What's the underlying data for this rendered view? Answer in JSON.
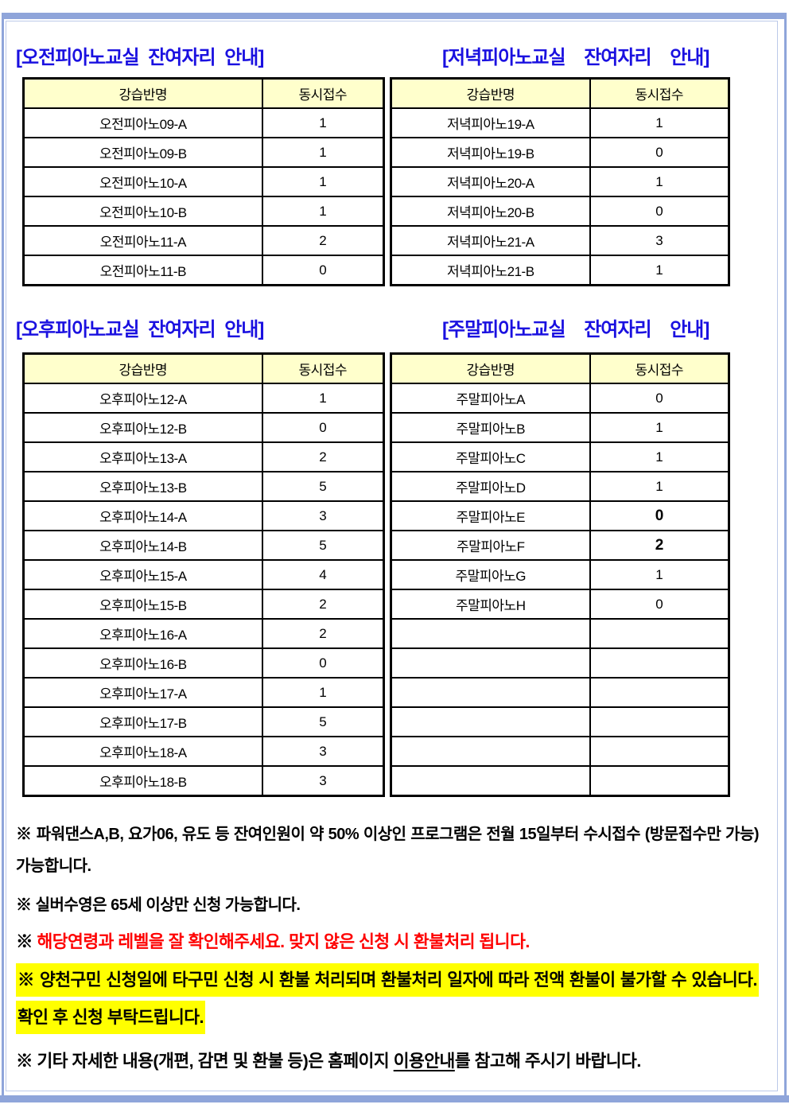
{
  "sections": [
    {
      "left_title": "[오전피아노교실 잔여자리 안내]",
      "right_title": "[저녁피아노교실 잔여자리 안내]",
      "left_table": {
        "headers": [
          "강습반명",
          "동시접수"
        ],
        "rows": [
          {
            "name": "오전피아노09-A",
            "value": "1"
          },
          {
            "name": "오전피아노09-B",
            "value": "1"
          },
          {
            "name": "오전피아노10-A",
            "value": "1"
          },
          {
            "name": "오전피아노10-B",
            "value": "1"
          },
          {
            "name": "오전피아노11-A",
            "value": "2"
          },
          {
            "name": "오전피아노11-B",
            "value": "0"
          }
        ]
      },
      "right_table": {
        "headers": [
          "강습반명",
          "동시접수"
        ],
        "rows": [
          {
            "name": "저녁피아노19-A",
            "value": "1"
          },
          {
            "name": "저녁피아노19-B",
            "value": "0"
          },
          {
            "name": "저녁피아노20-A",
            "value": "1"
          },
          {
            "name": "저녁피아노20-B",
            "value": "0"
          },
          {
            "name": "저녁피아노21-A",
            "value": "3"
          },
          {
            "name": "저녁피아노21-B",
            "value": "1"
          }
        ]
      }
    },
    {
      "left_title": "[오후피아노교실 잔여자리 안내]",
      "right_title": "[주말피아노교실 잔여자리 안내]",
      "left_table": {
        "headers": [
          "강습반명",
          "동시접수"
        ],
        "rows": [
          {
            "name": "오후피아노12-A",
            "value": "1"
          },
          {
            "name": "오후피아노12-B",
            "value": "0"
          },
          {
            "name": "오후피아노13-A",
            "value": "2"
          },
          {
            "name": "오후피아노13-B",
            "value": "5"
          },
          {
            "name": "오후피아노14-A",
            "value": "3"
          },
          {
            "name": "오후피아노14-B",
            "value": "5"
          },
          {
            "name": "오후피아노15-A",
            "value": "4"
          },
          {
            "name": "오후피아노15-B",
            "value": "2"
          },
          {
            "name": "오후피아노16-A",
            "value": "2"
          },
          {
            "name": "오후피아노16-B",
            "value": "0"
          },
          {
            "name": "오후피아노17-A",
            "value": "1"
          },
          {
            "name": "오후피아노17-B",
            "value": "5"
          },
          {
            "name": "오후피아노18-A",
            "value": "3"
          },
          {
            "name": "오후피아노18-B",
            "value": "3"
          }
        ]
      },
      "right_table": {
        "headers": [
          "강습반명",
          "동시접수"
        ],
        "rows": [
          {
            "name": "주말피아노A",
            "value": "0"
          },
          {
            "name": "주말피아노B",
            "value": "1"
          },
          {
            "name": "주말피아노C",
            "value": "1"
          },
          {
            "name": "주말피아노D",
            "value": "1"
          },
          {
            "name": "주말피아노E",
            "value": "0",
            "bold": true
          },
          {
            "name": "주말피아노F",
            "value": "2",
            "bold": true
          },
          {
            "name": "주말피아노G",
            "value": "1"
          },
          {
            "name": "주말피아노H",
            "value": "0"
          },
          {
            "name": "",
            "value": ""
          },
          {
            "name": "",
            "value": ""
          },
          {
            "name": "",
            "value": ""
          },
          {
            "name": "",
            "value": ""
          },
          {
            "name": "",
            "value": ""
          },
          {
            "name": "",
            "value": ""
          }
        ]
      }
    }
  ],
  "notes": [
    {
      "marker": "※",
      "text": "파워댄스A,B, 요가06, 유도 등 잔여인원이 약 50% 이상인 프로그램은 전월 15일부터 수시접수 (방문접수만 가능) 가능합니다."
    },
    {
      "marker": "※",
      "text": "실버수영은 65세 이상만 신청 가능합니다."
    },
    {
      "marker": "※",
      "text": "해당연령과 레벨을 잘 확인해주세요. 맞지 않은 신청 시 환불처리 됩니다."
    },
    {
      "marker": "※",
      "text": "양천구민 신청일에 타구민 신청 시 환불 처리되며 환불처리 일자에 따라 전액 환불이 불가할 수 있습니다. 확인 후 신청 부탁드립니다."
    },
    {
      "marker": "※",
      "prefix": "기타 자세한 내용(개편, 감면 및 환불 등)은 홈페이지 ",
      "link": "이용안내",
      "suffix": "를 참고해 주시기 바랍니다."
    }
  ],
  "colors": {
    "title_blue": "#1a10e0",
    "table_header_bg": "#ffffcc",
    "frame_periwinkle": "#8fa5da",
    "note_red": "#fe0000",
    "highlight_yellow": "#ffff00",
    "border_black": "#000000"
  }
}
